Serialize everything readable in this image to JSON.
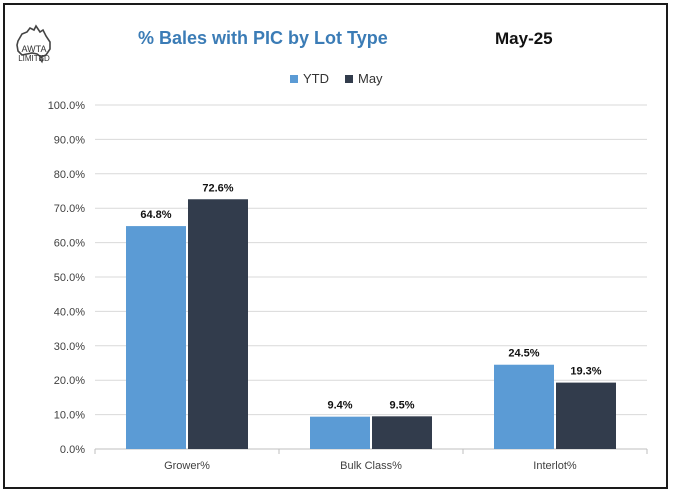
{
  "logo": {
    "text_line1": "AWTA",
    "text_line2": "LIMITED"
  },
  "header": {
    "title": "% Bales with PIC by Lot Type",
    "date": "May-25"
  },
  "colors": {
    "ytd": "#5b9bd5",
    "may": "#323c4c",
    "title": "#3b7cb6",
    "grid": "#d9d9d9"
  },
  "chart_data": {
    "type": "bar",
    "title": "% Bales with PIC by Lot Type",
    "categories": [
      "Grower%",
      "Bulk Class%",
      "Interlot%"
    ],
    "series": [
      {
        "name": "YTD",
        "values": [
          64.8,
          9.4,
          24.5
        ],
        "labels": [
          "64.8%",
          "9.4%",
          "24.5%"
        ]
      },
      {
        "name": "May",
        "values": [
          72.6,
          9.5,
          19.3
        ],
        "labels": [
          "72.6%",
          "9.5%",
          "19.3%"
        ]
      }
    ],
    "ylim": [
      0,
      100
    ],
    "yticks": [
      "0.0%",
      "10.0%",
      "20.0%",
      "30.0%",
      "40.0%",
      "50.0%",
      "60.0%",
      "70.0%",
      "80.0%",
      "90.0%",
      "100.0%"
    ],
    "grid": true,
    "legend": "top-center"
  }
}
